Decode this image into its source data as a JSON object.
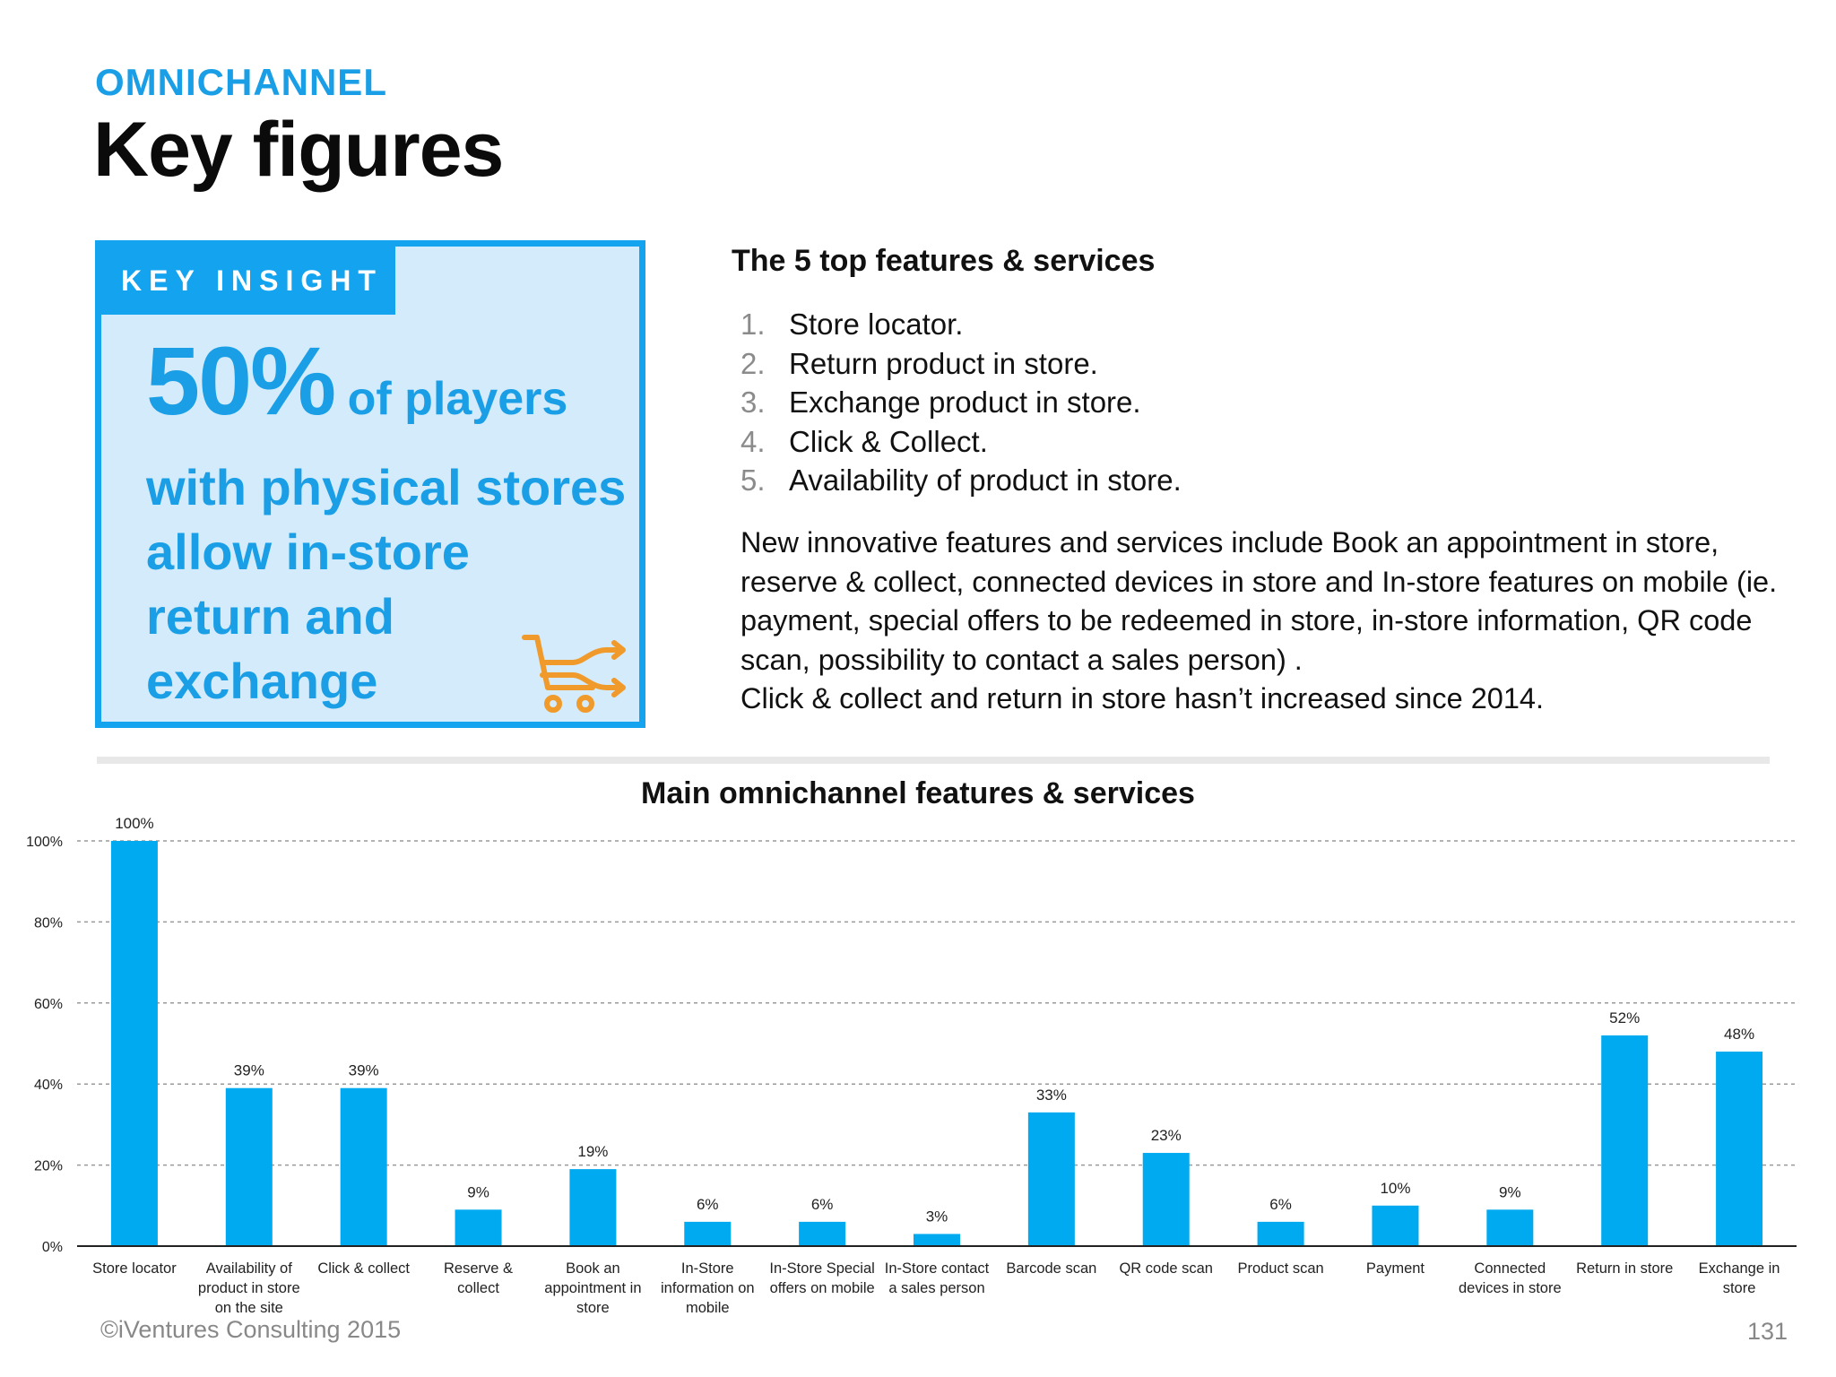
{
  "header": {
    "kicker": "OMNICHANNEL",
    "title": "Key figures"
  },
  "insight": {
    "tab_label": "KEY INSIGHT",
    "big_value": "50%",
    "lead": " of players",
    "lines": [
      "with physical stores",
      "allow in-store",
      "return and",
      "exchange"
    ],
    "icon": "shopping-cart-shuffle-icon"
  },
  "top_features": {
    "heading": "The 5 top features & services",
    "items": [
      {
        "num": "1.",
        "text": "Store locator."
      },
      {
        "num": "2.",
        "text": "Return product in store."
      },
      {
        "num": "3.",
        "text": "Exchange product in store."
      },
      {
        "num": "4.",
        "text": "Click & Collect."
      },
      {
        "num": "5.",
        "text": "Availability of product in store."
      }
    ],
    "description": "New innovative features and services include Book an appointment in store, reserve & collect, connected devices in store and In-store features on mobile (ie. payment, special offers to be redeemed in store, in-store information, QR code scan, possibility to contact a sales person) .",
    "note": "Click & collect and return in store hasn’t increased since 2014."
  },
  "chart_data": {
    "type": "bar",
    "title": "Main omnichannel features & services",
    "xlabel": "",
    "ylabel": "",
    "ylim": [
      0,
      100
    ],
    "yticks": [
      0,
      20,
      40,
      60,
      80,
      100
    ],
    "ytick_labels": [
      "0%",
      "20%",
      "40%",
      "60%",
      "80%",
      "100%"
    ],
    "grid": true,
    "categories": [
      [
        "Store locator"
      ],
      [
        "Availability of",
        "product in store",
        "on the site"
      ],
      [
        "Click & collect"
      ],
      [
        "Reserve &",
        "collect"
      ],
      [
        "Book an",
        "appointment in",
        "store"
      ],
      [
        "In-Store",
        "information on",
        "mobile"
      ],
      [
        "In-Store Special",
        "offers on mobile"
      ],
      [
        "In-Store contact",
        "a sales person"
      ],
      [
        "Barcode scan"
      ],
      [
        "QR code scan"
      ],
      [
        "Product scan"
      ],
      [
        "Payment"
      ],
      [
        "Connected",
        "devices in store"
      ],
      [
        "Return in store"
      ],
      [
        "Exchange in",
        "store"
      ]
    ],
    "values": [
      100,
      39,
      39,
      9,
      19,
      6,
      6,
      3,
      33,
      23,
      6,
      10,
      9,
      52,
      48
    ],
    "value_labels": [
      "100%",
      "39%",
      "39%",
      "9%",
      "19%",
      "6%",
      "6%",
      "3%",
      "33%",
      "23%",
      "6%",
      "10%",
      "9%",
      "52%",
      "48%"
    ],
    "bar_color": "#00aaf0"
  },
  "footer": {
    "copyright": "©iVentures Consulting 2015",
    "page_number": "131"
  }
}
